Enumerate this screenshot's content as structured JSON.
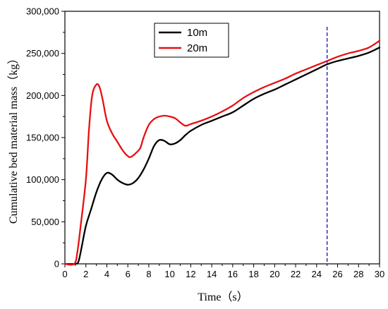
{
  "chart_data": {
    "type": "line",
    "xlabel": "Time（s）",
    "ylabel": "Cumulative bed material mass（kg）",
    "xlim": [
      0,
      30
    ],
    "ylim": [
      0,
      300000
    ],
    "xticks": [
      0,
      2,
      4,
      6,
      8,
      10,
      12,
      14,
      16,
      18,
      20,
      22,
      24,
      26,
      28,
      30
    ],
    "yticks": [
      0,
      50000,
      100000,
      150000,
      200000,
      250000,
      300000
    ],
    "xtick_labels": [
      "0",
      "2",
      "4",
      "6",
      "8",
      "10",
      "12",
      "14",
      "16",
      "18",
      "20",
      "22",
      "24",
      "26",
      "28",
      "30"
    ],
    "ytick_labels": [
      "0",
      "50,000",
      "100,000",
      "150,000",
      "200,000",
      "250,000",
      "300,000"
    ],
    "grid": false,
    "legend": "top-left",
    "vline": {
      "x": 25,
      "color": "#1f1fb4",
      "style": "dashed"
    },
    "series": [
      {
        "name": "10m",
        "color": "#000000",
        "x": [
          0,
          1.0,
          1.3,
          1.6,
          2.0,
          2.5,
          3.0,
          3.5,
          4.0,
          4.5,
          5.0,
          5.5,
          6.0,
          6.5,
          7.0,
          7.5,
          8.0,
          8.5,
          9.0,
          9.5,
          10.0,
          10.5,
          11.0,
          11.5,
          12.0,
          13.0,
          14.0,
          15.0,
          16.0,
          17.0,
          18.0,
          19.0,
          20.0,
          21.0,
          22.0,
          23.0,
          24.0,
          25.0,
          26.0,
          27.0,
          28.0,
          29.0,
          30.0
        ],
        "y": [
          0,
          0,
          3000,
          20000,
          45000,
          65000,
          85000,
          100000,
          108000,
          106000,
          100000,
          96000,
          94000,
          96000,
          102000,
          112000,
          125000,
          140000,
          147000,
          146000,
          142000,
          143000,
          147000,
          153000,
          158000,
          165000,
          170000,
          175000,
          180000,
          188000,
          196000,
          202000,
          207000,
          213000,
          219000,
          225000,
          231000,
          237000,
          241000,
          244000,
          247000,
          251000,
          257000
        ]
      },
      {
        "name": "20m",
        "color": "#e81010",
        "x": [
          0,
          0.9,
          1.2,
          1.5,
          2.0,
          2.3,
          2.6,
          3.0,
          3.3,
          3.6,
          4.0,
          4.5,
          5.0,
          5.5,
          6.0,
          6.3,
          6.8,
          7.2,
          7.5,
          8.0,
          8.5,
          9.0,
          9.5,
          10.0,
          10.5,
          11.0,
          11.5,
          12.0,
          13.0,
          14.0,
          15.0,
          16.0,
          17.0,
          18.0,
          19.0,
          20.0,
          21.0,
          22.0,
          23.0,
          24.0,
          25.0,
          26.0,
          27.0,
          28.0,
          29.0,
          30.0
        ],
        "y": [
          0,
          0,
          15000,
          45000,
          100000,
          160000,
          200000,
          213000,
          210000,
          195000,
          170000,
          155000,
          145000,
          135000,
          128000,
          127000,
          132000,
          138000,
          150000,
          165000,
          172000,
          175000,
          176000,
          175000,
          173000,
          168000,
          164000,
          166000,
          170000,
          175000,
          181000,
          188000,
          197000,
          204000,
          210000,
          215000,
          220000,
          226000,
          231000,
          236000,
          241000,
          246000,
          250000,
          253000,
          257000,
          265000
        ]
      }
    ]
  }
}
